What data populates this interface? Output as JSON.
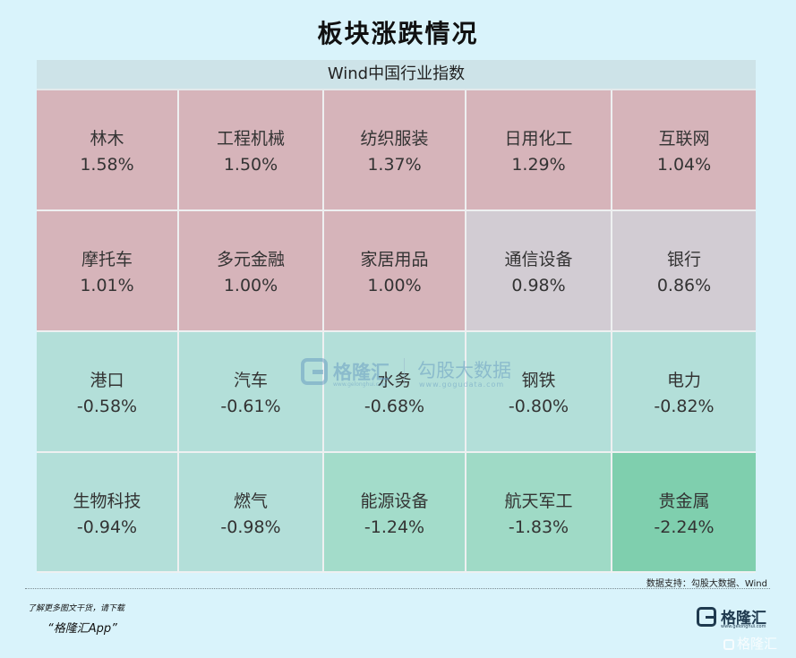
{
  "title": "板块涨跌情况",
  "panel_header": "Wind中国行业指数",
  "cells": [
    {
      "name": "林木",
      "value": "1.58%",
      "color": "#d6b4ba"
    },
    {
      "name": "工程机械",
      "value": "1.50%",
      "color": "#d6b4ba"
    },
    {
      "name": "纺织服装",
      "value": "1.37%",
      "color": "#d6b4ba"
    },
    {
      "name": "日用化工",
      "value": "1.29%",
      "color": "#d6b4ba"
    },
    {
      "name": "互联网",
      "value": "1.04%",
      "color": "#d6b4ba"
    },
    {
      "name": "摩托车",
      "value": "1.01%",
      "color": "#d6b4ba"
    },
    {
      "name": "多元金融",
      "value": "1.00%",
      "color": "#d6b4ba"
    },
    {
      "name": "家居用品",
      "value": "1.00%",
      "color": "#d6b4ba"
    },
    {
      "name": "通信设备",
      "value": "0.98%",
      "color": "#d2ccd3"
    },
    {
      "name": "银行",
      "value": "0.86%",
      "color": "#d2ccd3"
    },
    {
      "name": "港口",
      "value": "-0.58%",
      "color": "#b3dfd9"
    },
    {
      "name": "汽车",
      "value": "-0.61%",
      "color": "#b3dfd9"
    },
    {
      "name": "水务",
      "value": "-0.68%",
      "color": "#b3dfd9"
    },
    {
      "name": "钢铁",
      "value": "-0.80%",
      "color": "#b3dfd9"
    },
    {
      "name": "电力",
      "value": "-0.82%",
      "color": "#b3dfd9"
    },
    {
      "name": "生物科技",
      "value": "-0.94%",
      "color": "#b3dfd9"
    },
    {
      "name": "燃气",
      "value": "-0.98%",
      "color": "#b3dfd9"
    },
    {
      "name": "能源设备",
      "value": "-1.24%",
      "color": "#a3dcca"
    },
    {
      "name": "航天军工",
      "value": "-1.83%",
      "color": "#9fdac6"
    },
    {
      "name": "贵金属",
      "value": "-2.24%",
      "color": "#7fcfae"
    }
  ],
  "watermark": {
    "brand": "格隆汇",
    "brand_sub": "www.gelonghui.com",
    "brand2": "勾股大数据",
    "url": "www.gogudata.com"
  },
  "source": "数据支持：勾股大数据、Wind",
  "promo": {
    "line1": "了解更多图文干货，请下载",
    "line2": "“格隆汇App”"
  },
  "logo": {
    "text": "格隆汇",
    "url": "www.gelonghui.com"
  },
  "corner_watermark": "格隆汇"
}
